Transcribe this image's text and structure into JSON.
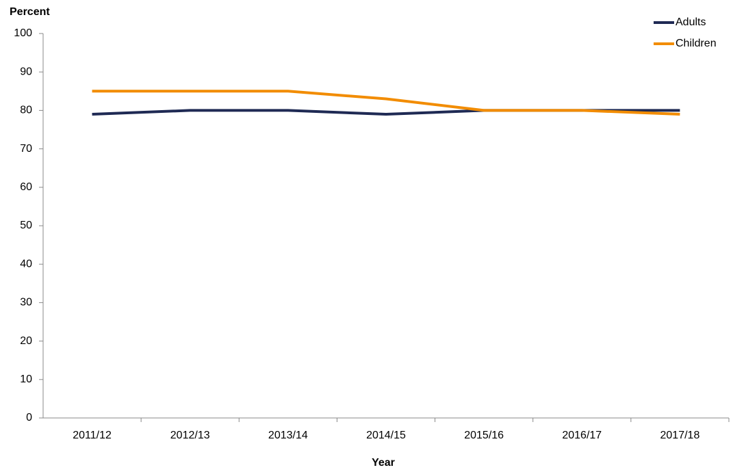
{
  "chart_data": {
    "type": "line",
    "y_label": "Percent",
    "x_label": "Year",
    "categories": [
      "2011/12",
      "2012/13",
      "2013/14",
      "2014/15",
      "2015/16",
      "2016/17",
      "2017/18"
    ],
    "series": [
      {
        "name": "Adults",
        "color": "#1f2a54",
        "values": [
          79,
          80,
          80,
          79,
          80,
          80,
          80
        ]
      },
      {
        "name": "Children",
        "color": "#f28c00",
        "values": [
          85,
          85,
          85,
          83,
          80,
          80,
          79
        ]
      }
    ],
    "ylim": [
      0,
      100
    ],
    "yticks": [
      0,
      10,
      20,
      30,
      40,
      50,
      60,
      70,
      80,
      90,
      100
    ],
    "legend": "top-right",
    "grid": false
  }
}
